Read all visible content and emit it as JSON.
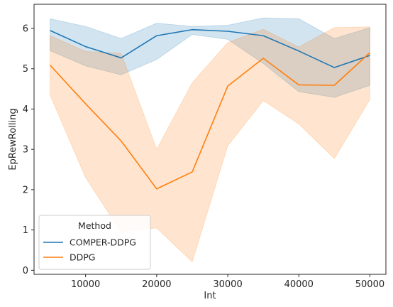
{
  "chart_data": {
    "type": "line",
    "title": "",
    "xlabel": "Int",
    "ylabel": "EpRewRolling",
    "xlim": [
      2750,
      52250
    ],
    "ylim": [
      -0.1,
      6.6
    ],
    "x_ticks": [
      10000,
      20000,
      30000,
      40000,
      50000
    ],
    "x_tick_labels": [
      "10000",
      "20000",
      "30000",
      "40000",
      "50000"
    ],
    "y_ticks": [
      0,
      1,
      2,
      3,
      4,
      5,
      6
    ],
    "y_tick_labels": [
      "0",
      "1",
      "2",
      "3",
      "4",
      "5",
      "6"
    ],
    "grid": false,
    "legend": {
      "title": "Method",
      "placement": "lower-left"
    },
    "x": [
      5000,
      10000,
      15000,
      20000,
      25000,
      30000,
      35000,
      40000,
      45000,
      50000
    ],
    "series": [
      {
        "name": "COMPER-DDPG",
        "color": "#1f77b4",
        "values": [
          5.95,
          5.55,
          5.27,
          5.82,
          5.97,
          5.93,
          5.82,
          5.44,
          5.03,
          5.33
        ],
        "ci_low": [
          5.45,
          5.07,
          4.85,
          5.23,
          5.85,
          5.73,
          5.13,
          4.43,
          4.29,
          4.59
        ],
        "ci_high": [
          6.24,
          6.05,
          5.75,
          6.13,
          6.05,
          6.08,
          6.26,
          6.24,
          5.75,
          6.02
        ]
      },
      {
        "name": "DDPG",
        "color": "#ff7f0e",
        "values": [
          5.09,
          4.13,
          3.21,
          2.02,
          2.44,
          4.57,
          5.26,
          4.6,
          4.59,
          5.4
        ],
        "ci_low": [
          4.35,
          2.3,
          0.95,
          1.05,
          0.21,
          3.09,
          4.21,
          3.63,
          2.77,
          4.24
        ],
        "ci_high": [
          5.82,
          5.43,
          5.38,
          3.0,
          4.65,
          5.65,
          5.98,
          5.54,
          6.02,
          6.04
        ]
      }
    ]
  }
}
